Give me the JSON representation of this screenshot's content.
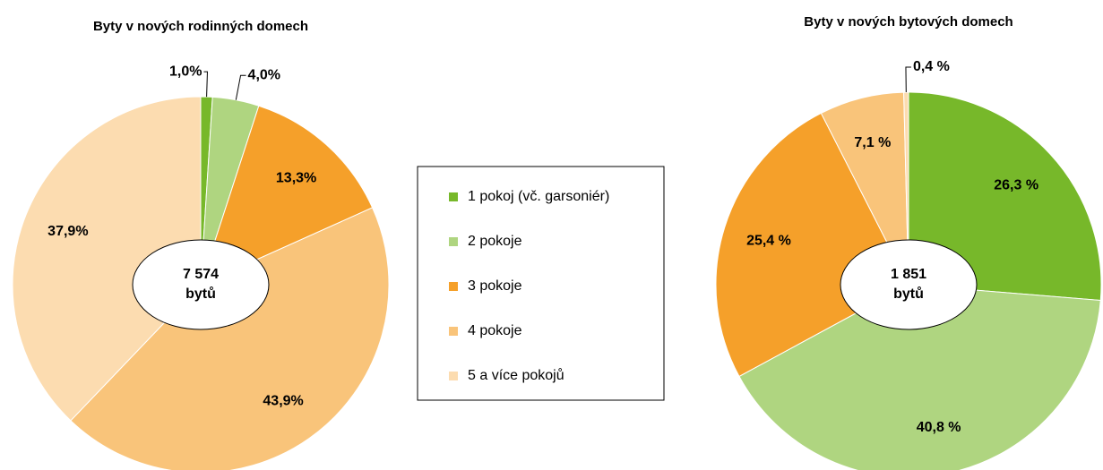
{
  "chart_data": [
    {
      "type": "pie",
      "title": "Byty v nových rodinných domech",
      "center_label": [
        "7 574",
        "bytů"
      ],
      "categories": [
        "1 pokoj (vč. garsoniér)",
        "2 pokoje",
        "3 pokoje",
        "4 pokoje",
        "5 a více pokojů"
      ],
      "values": [
        1.0,
        4.0,
        13.3,
        43.9,
        37.9
      ],
      "value_labels": [
        "1,0%",
        "4,0%",
        "13,3%",
        "43,9%",
        "37,9%"
      ],
      "colors": [
        "#77b82a",
        "#afd580",
        "#f5a02a",
        "#f9c47a",
        "#fcdcb0"
      ]
    },
    {
      "type": "pie",
      "title": "Byty v nových bytových domech",
      "center_label": [
        "1 851",
        "bytů"
      ],
      "values": [
        26.3,
        40.8,
        25.4,
        7.1,
        0.4
      ],
      "value_labels": [
        "26,3 %",
        "40,8 %",
        "25,4 %",
        "7,1 %",
        "0,4 %"
      ],
      "colors": [
        "#77b82a",
        "#afd580",
        "#f5a02a",
        "#f9c47a",
        "#fcdcb0"
      ]
    }
  ]
}
